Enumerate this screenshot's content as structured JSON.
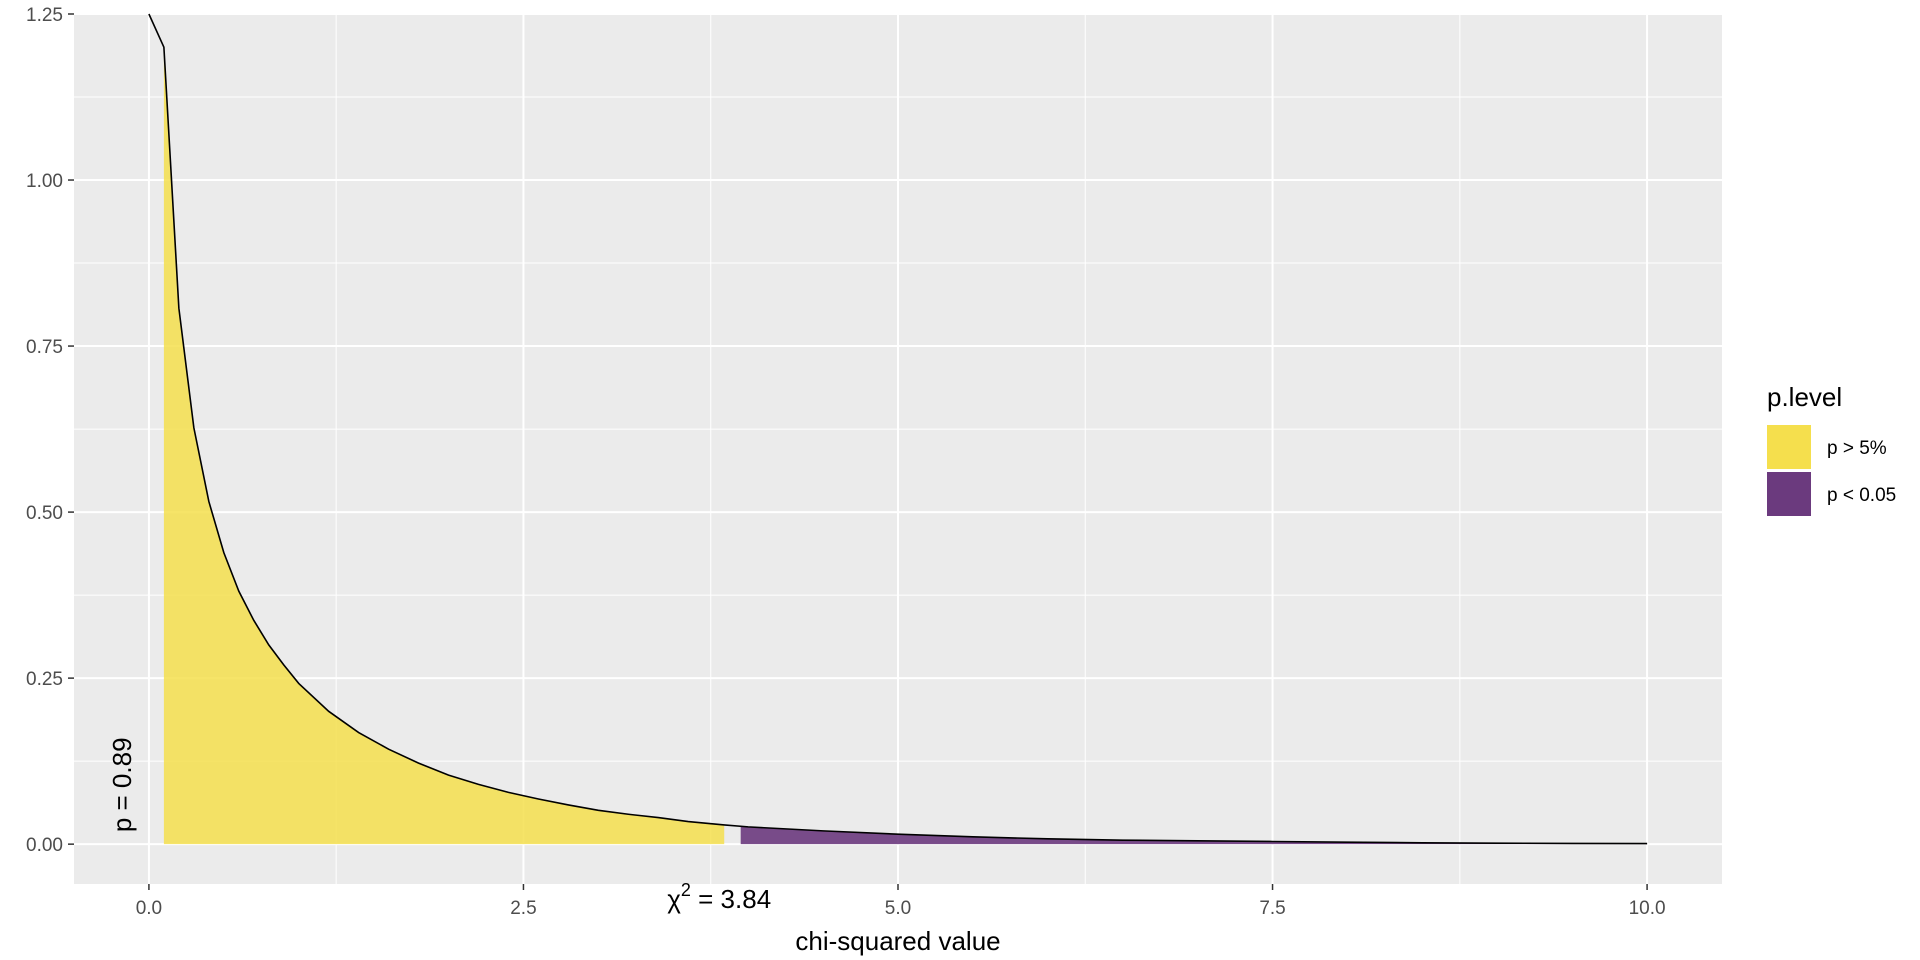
{
  "chart_data": {
    "type": "area",
    "title": "",
    "xlabel": "chi-squared value",
    "ylabel": "",
    "xlim": [
      -0.5,
      10.5
    ],
    "ylim": [
      -0.06,
      1.25
    ],
    "x_ticks": [
      0.0,
      2.5,
      5.0,
      7.5,
      10.0
    ],
    "x_tick_labels": [
      "0.0",
      "2.5",
      "5.0",
      "7.5",
      "10.0"
    ],
    "y_ticks": [
      0.0,
      0.25,
      0.5,
      0.75,
      1.0,
      1.25
    ],
    "y_tick_labels": [
      "0.00",
      "0.25",
      "0.50",
      "0.75",
      "1.00",
      "1.25"
    ],
    "grid": true,
    "background": "#ebebeb",
    "curve_color": "#000000",
    "density": {
      "x": [
        0.0,
        0.1,
        0.2,
        0.3,
        0.4,
        0.5,
        0.6,
        0.7,
        0.8,
        0.9,
        1.0,
        1.2,
        1.4,
        1.6,
        1.8,
        2.0,
        2.2,
        2.4,
        2.6,
        2.8,
        3.0,
        3.2,
        3.4,
        3.6,
        3.84,
        4.0,
        4.5,
        5.0,
        5.5,
        6.0,
        6.5,
        7.0,
        7.5,
        8.0,
        8.5,
        9.0,
        9.5,
        10.0
      ],
      "y": [
        1.25,
        1.2,
        0.807,
        0.627,
        0.516,
        0.439,
        0.381,
        0.337,
        0.3,
        0.27,
        0.242,
        0.2,
        0.168,
        0.143,
        0.122,
        0.104,
        0.09,
        0.078,
        0.068,
        0.059,
        0.051,
        0.045,
        0.04,
        0.034,
        0.029,
        0.026,
        0.02,
        0.015,
        0.011,
        0.008,
        0.006,
        0.005,
        0.004,
        0.003,
        0.002,
        0.0015,
        0.0011,
        0.0009
      ]
    },
    "series": [
      {
        "name": "p > 5%",
        "color": "#f5df4d",
        "x_range": [
          0.1,
          3.84
        ]
      },
      {
        "name": "p < 0.05",
        "color": "#6b3a7e",
        "x_range": [
          3.95,
          10.0
        ]
      }
    ],
    "annotations": [
      {
        "text": "p = 0.89",
        "x": -0.12,
        "y": 0.0,
        "rotated": true
      },
      {
        "text_symbol": "χ",
        "text_sup": "2",
        "text_rest": " = 3.84",
        "x": 3.84,
        "y": -0.06
      }
    ],
    "legend": {
      "title": "p.level",
      "position": "right",
      "items": [
        {
          "label": "p > 5%",
          "color": "#f5df4d"
        },
        {
          "label": "p < 0.05",
          "color": "#6b3a7e"
        }
      ]
    }
  }
}
